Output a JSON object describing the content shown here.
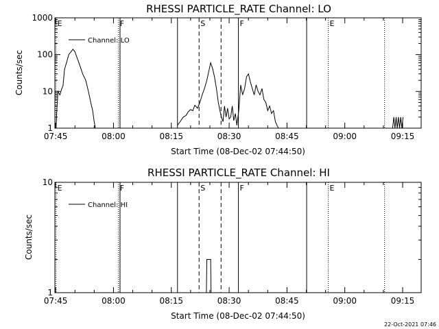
{
  "footer": {
    "timestamp": "22-Oct-2021 07:46"
  },
  "chart_data": [
    {
      "type": "line",
      "title": "RHESSI PARTICLE_RATE Channel: LO",
      "xlabel": "Start Time (08-Dec-02 07:44:50)",
      "ylabel": "Counts/sec",
      "yscale": "log",
      "ylim": [
        1,
        1000
      ],
      "xlim_minutes": [
        0,
        95
      ],
      "x_ticks": [
        "07:45",
        "08:00",
        "08:15",
        "08:30",
        "08:45",
        "09:00",
        "09:15"
      ],
      "x_tick_minutes": [
        0.2,
        15.2,
        30.2,
        45.2,
        60.2,
        75.2,
        90.2
      ],
      "y_ticks": [
        "1",
        "10",
        "100",
        "1000"
      ],
      "y_tick_values": [
        1,
        10,
        100,
        1000
      ],
      "legend": "Channel: LO",
      "legend_position": "top-left",
      "markers": [
        {
          "label": "E",
          "minute": 0.3,
          "style": "dotted"
        },
        {
          "label": "F",
          "minute": 16.5,
          "style": "dotted"
        },
        {
          "label": "",
          "minute": 16.9,
          "style": "solid"
        },
        {
          "label": "",
          "minute": 31.8,
          "style": "solid"
        },
        {
          "label": "S",
          "minute": 37.4,
          "style": "dashed"
        },
        {
          "label": "",
          "minute": 43.1,
          "style": "dashed"
        },
        {
          "label": "F",
          "minute": 47.6,
          "style": "solid"
        },
        {
          "label": "",
          "minute": 65.3,
          "style": "solid"
        },
        {
          "label": "E",
          "minute": 70.9,
          "style": "dotted"
        },
        {
          "label": "",
          "minute": 85.5,
          "style": "dotted"
        }
      ],
      "series": [
        {
          "segments": [
            [
              [
                0.3,
                1
              ],
              [
                0.5,
                3
              ],
              [
                0.8,
                10
              ],
              [
                1.3,
                8
              ],
              [
                1.8,
                12
              ],
              [
                2.1,
                14
              ],
              [
                2.5,
                40
              ],
              [
                3,
                60
              ],
              [
                3.6,
                100
              ],
              [
                4.2,
                120
              ],
              [
                4.7,
                140
              ],
              [
                5.2,
                120
              ],
              [
                5.8,
                80
              ],
              [
                6.5,
                50
              ],
              [
                7.2,
                30
              ],
              [
                8,
                20
              ],
              [
                8.7,
                10
              ],
              [
                9.3,
                5
              ],
              [
                9.8,
                3
              ],
              [
                10.2,
                1.5
              ],
              [
                10.5,
                1
              ]
            ],
            [
              [
                31.8,
                1.2
              ],
              [
                32.5,
                1.5
              ],
              [
                33.3,
                2
              ],
              [
                34,
                2.2
              ],
              [
                34.6,
                2.8
              ],
              [
                35.2,
                3.2
              ],
              [
                35.8,
                3
              ],
              [
                36.3,
                4.2
              ],
              [
                37,
                3.5
              ],
              [
                37.6,
                5
              ],
              [
                38.2,
                8
              ],
              [
                38.8,
                12
              ],
              [
                39.4,
                20
              ],
              [
                40,
                38
              ],
              [
                40.4,
                60
              ],
              [
                40.9,
                42
              ],
              [
                41.4,
                25
              ],
              [
                41.9,
                12
              ],
              [
                42.4,
                5
              ],
              [
                42.8,
                3
              ],
              [
                43.2,
                2
              ],
              [
                43.6,
                1.5
              ],
              [
                44,
                4
              ],
              [
                44.4,
                2
              ],
              [
                44.8,
                3.5
              ],
              [
                45.2,
                1.8
              ],
              [
                45.6,
                2
              ],
              [
                46,
                4
              ],
              [
                46.4,
                1.6
              ],
              [
                46.8,
                2.5
              ],
              [
                47.2,
                1.2
              ],
              [
                47.7,
                3
              ],
              [
                48.2,
                15
              ],
              [
                48.7,
                8
              ],
              [
                49.2,
                12
              ],
              [
                49.7,
                25
              ],
              [
                50.2,
                30
              ],
              [
                50.7,
                18
              ],
              [
                51.2,
                12
              ],
              [
                51.7,
                8
              ],
              [
                52.2,
                15
              ],
              [
                52.7,
                10
              ],
              [
                53.2,
                8
              ],
              [
                53.7,
                12
              ],
              [
                54.2,
                6
              ],
              [
                54.7,
                5
              ],
              [
                55.2,
                3
              ],
              [
                55.7,
                4
              ],
              [
                56.2,
                2.5
              ],
              [
                56.7,
                3
              ],
              [
                57.2,
                1.5
              ],
              [
                57.6,
                1.2
              ],
              [
                58,
                1
              ]
            ],
            [
              [
                87.6,
                1
              ],
              [
                87.9,
                2
              ],
              [
                88.2,
                1
              ],
              [
                88.5,
                2
              ],
              [
                88.8,
                1
              ],
              [
                89.1,
                2
              ],
              [
                89.4,
                1
              ],
              [
                89.7,
                2
              ],
              [
                90,
                1
              ],
              [
                90.3,
                2
              ]
            ]
          ]
        }
      ]
    },
    {
      "type": "line",
      "title": "RHESSI PARTICLE_RATE Channel: HI",
      "xlabel": "Start Time (08-Dec-02 07:44:50)",
      "ylabel": "Counts/sec",
      "yscale": "log",
      "ylim": [
        1,
        10
      ],
      "xlim_minutes": [
        0,
        95
      ],
      "x_ticks": [
        "07:45",
        "08:00",
        "08:15",
        "08:30",
        "08:45",
        "09:00",
        "09:15"
      ],
      "x_tick_minutes": [
        0.2,
        15.2,
        30.2,
        45.2,
        60.2,
        75.2,
        90.2
      ],
      "y_ticks": [
        "1",
        "10"
      ],
      "y_tick_values": [
        1,
        10
      ],
      "legend": "Channel: HI",
      "legend_position": "top-left",
      "markers": [
        {
          "label": "E",
          "minute": 0.3,
          "style": "dotted"
        },
        {
          "label": "F",
          "minute": 16.5,
          "style": "dotted"
        },
        {
          "label": "",
          "minute": 16.9,
          "style": "solid"
        },
        {
          "label": "",
          "minute": 31.8,
          "style": "solid"
        },
        {
          "label": "S",
          "minute": 37.4,
          "style": "dashed"
        },
        {
          "label": "",
          "minute": 43.1,
          "style": "dashed"
        },
        {
          "label": "F",
          "minute": 47.6,
          "style": "solid"
        },
        {
          "label": "",
          "minute": 65.3,
          "style": "solid"
        },
        {
          "label": "E",
          "minute": 70.9,
          "style": "dotted"
        },
        {
          "label": "",
          "minute": 85.5,
          "style": "dotted"
        }
      ],
      "series": [
        {
          "segments": [
            [
              [
                39.3,
                1
              ],
              [
                39.4,
                2
              ],
              [
                40.4,
                2
              ],
              [
                40.5,
                1
              ]
            ]
          ]
        }
      ]
    }
  ]
}
